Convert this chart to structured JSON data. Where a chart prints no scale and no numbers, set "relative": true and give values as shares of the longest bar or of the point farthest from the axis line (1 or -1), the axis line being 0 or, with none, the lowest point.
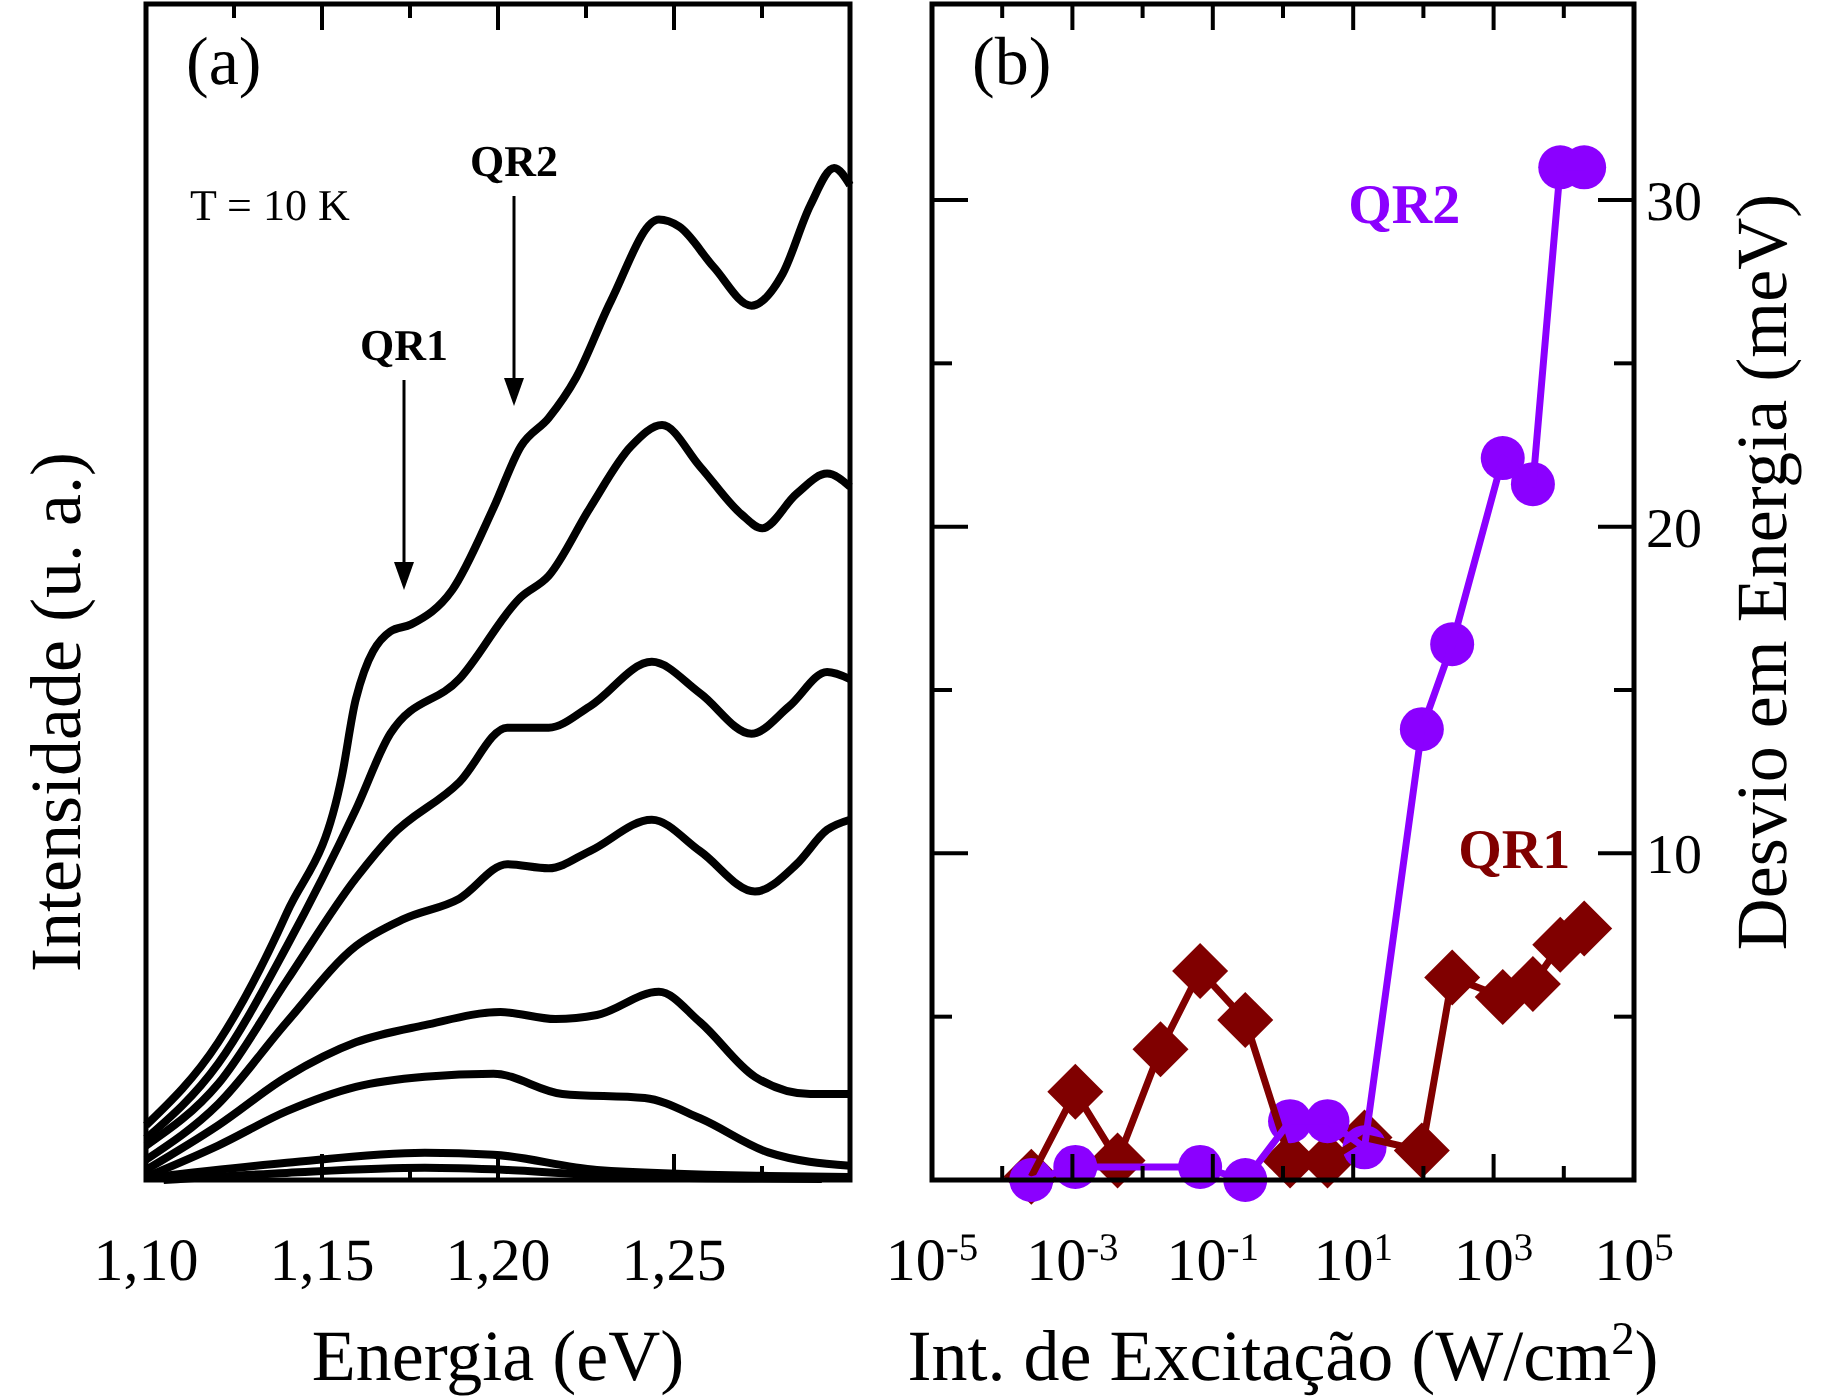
{
  "chart_data": [
    {
      "type": "line",
      "relative": true,
      "xlabel": "Energia (eV)",
      "ylabel": "Intensidade (u. a.)",
      "xlim": [
        1.1,
        1.3
      ],
      "xticks": [
        {
          "value": 1.1,
          "label": "1,10"
        },
        {
          "value": 1.125,
          "label": null
        },
        {
          "value": 1.15,
          "label": "1,15"
        },
        {
          "value": 1.175,
          "label": null
        },
        {
          "value": 1.2,
          "label": "1,20"
        },
        {
          "value": 1.225,
          "label": null
        },
        {
          "value": 1.25,
          "label": "1,25"
        },
        {
          "value": 1.275,
          "label": null
        }
      ],
      "tick_labels": "x",
      "grid": false,
      "marker": "none",
      "line_style": "solid",
      "annotations": [
        "(a)",
        "T = 10 K",
        "QR1",
        "QR2"
      ],
      "series": [
        {
          "color": "#000000",
          "x": [
            1.1,
            1.1205,
            1.14,
            1.1557,
            1.1596,
            1.1694,
            1.1753,
            1.187,
            1.1987,
            1.2065,
            1.2144,
            1.2222,
            1.232,
            1.2457,
            1.2515,
            1.2613,
            1.272,
            1.2808,
            1.2887,
            1.2955,
            1.3
          ],
          "values": [
            0.054,
            0.136,
            0.264,
            0.4,
            0.475,
            0.542,
            0.549,
            0.583,
            0.664,
            0.725,
            0.753,
            0.793,
            0.868,
            0.949,
            0.942,
            0.902,
            0.864,
            0.895,
            0.963,
            1,
            0.983
          ]
        },
        {
          "color": "#000000",
          "x": [
            1.1,
            1.1205,
            1.14,
            1.1596,
            1.1694,
            1.189,
            1.2065,
            1.2144,
            1.2261,
            1.2378,
            1.2466,
            1.2574,
            1.2691,
            1.275,
            1.2848,
            1.2935,
            1.3
          ],
          "values": [
            0.041,
            0.115,
            0.231,
            0.366,
            0.441,
            0.495,
            0.576,
            0.597,
            0.664,
            0.725,
            0.746,
            0.705,
            0.658,
            0.644,
            0.678,
            0.698,
            0.685
          ]
        },
        {
          "color": "#000000",
          "x": [
            1.1,
            1.1205,
            1.14,
            1.1596,
            1.1694,
            1.189,
            1.2026,
            1.2144,
            1.2261,
            1.2437,
            1.2574,
            1.272,
            1.2827,
            1.2935,
            1.3
          ],
          "values": [
            0.034,
            0.095,
            0.197,
            0.298,
            0.339,
            0.393,
            0.447,
            0.447,
            0.468,
            0.512,
            0.481,
            0.441,
            0.468,
            0.502,
            0.495
          ]
        },
        {
          "color": "#000000",
          "x": [
            1.1,
            1.1205,
            1.14,
            1.1596,
            1.1733,
            1.189,
            1.2026,
            1.2144,
            1.2261,
            1.2437,
            1.2574,
            1.273,
            1.2848,
            1.2935,
            1.3
          ],
          "values": [
            0.02,
            0.075,
            0.156,
            0.231,
            0.258,
            0.278,
            0.312,
            0.308,
            0.325,
            0.356,
            0.325,
            0.285,
            0.312,
            0.346,
            0.356
          ]
        },
        {
          "color": "#000000",
          "x": [
            1.1,
            1.1205,
            1.14,
            1.1596,
            1.1792,
            1.2007,
            1.2163,
            1.2281,
            1.2457,
            1.2574,
            1.273,
            1.2887,
            1.3
          ],
          "values": [
            0.01,
            0.054,
            0.102,
            0.136,
            0.153,
            0.166,
            0.159,
            0.163,
            0.186,
            0.156,
            0.102,
            0.085,
            0.085
          ]
        },
        {
          "color": "#000000",
          "x": [
            1.1,
            1.1205,
            1.14,
            1.1596,
            1.1792,
            1.1987,
            1.2183,
            1.2417,
            1.2574,
            1.277,
            1.3
          ],
          "values": [
            0.003,
            0.034,
            0.068,
            0.092,
            0.102,
            0.105,
            0.085,
            0.081,
            0.061,
            0.027,
            0.014
          ]
        },
        {
          "color": "#000000",
          "x": [
            1.1,
            1.14,
            1.1792,
            1.1987,
            1.2281,
            1.277,
            1.3
          ],
          "values": [
            0.002,
            0.017,
            0.027,
            0.025,
            0.01,
            0.004,
            0.003
          ]
        },
        {
          "color": "#000000",
          "x": [
            1.105,
            1.14,
            1.1792,
            1.2026,
            1.2378,
            1.292
          ],
          "values": [
            0,
            0.007,
            0.012,
            0.01,
            0.003,
            0.001
          ]
        }
      ]
    },
    {
      "type": "line",
      "xlabel": "Int. de Excitação (W/cm$^{2}$)",
      "ylabel": "Desvio em Energia (meV)",
      "log": "x",
      "xlim": [
        1e-05,
        100000
      ],
      "xticks": [
        {
          "value": 1e-05,
          "label": "10$^{-5}$"
        },
        {
          "value": 0.0001,
          "label": null
        },
        {
          "value": 0.001,
          "label": "10$^{-3}$"
        },
        {
          "value": 0.01,
          "label": null
        },
        {
          "value": 0.1,
          "label": "10$^{-1}$"
        },
        {
          "value": 1,
          "label": null
        },
        {
          "value": 10,
          "label": "10$^{1}$"
        },
        {
          "value": 100,
          "label": null
        },
        {
          "value": 1000,
          "label": "10$^{3}$"
        },
        {
          "value": 10000,
          "label": null
        },
        {
          "value": 100000,
          "label": "10$^{5}$"
        }
      ],
      "ylim": [
        0,
        36
      ],
      "yticks": [
        {
          "value": 5,
          "label": null
        },
        10,
        {
          "value": 15,
          "label": null
        },
        20,
        {
          "value": 25,
          "label": null
        },
        30
      ],
      "grid": false,
      "line_style": "solid",
      "annotations": [
        "(b)"
      ],
      "series": [
        {
          "name": "QR1",
          "color": "#800000",
          "marker": "diamond",
          "x": [
            0.00026,
            0.0011,
            0.0044,
            0.018,
            0.066,
            0.29,
            1.26,
            4.3,
            14.5,
            95,
            257,
            1350,
            3630,
            8900,
            19500
          ],
          "values": [
            0.1,
            2.7,
            0.6,
            4,
            6.4,
            4.9,
            0.6,
            0.6,
            1.3,
            0.9,
            6.2,
            5.6,
            6,
            7.2,
            7.7
          ]
        },
        {
          "name": "QR2",
          "color": "#8b00ff",
          "marker": "circle",
          "x": [
            0.00026,
            0.0011,
            0.066,
            0.29,
            1.26,
            4.3,
            14.5,
            95,
            257,
            1350,
            3630,
            8900,
            19500
          ],
          "values": [
            0,
            0.4,
            0.4,
            0,
            1.8,
            1.8,
            1,
            13.8,
            16.4,
            22.1,
            21.3,
            31,
            31
          ]
        }
      ]
    }
  ]
}
